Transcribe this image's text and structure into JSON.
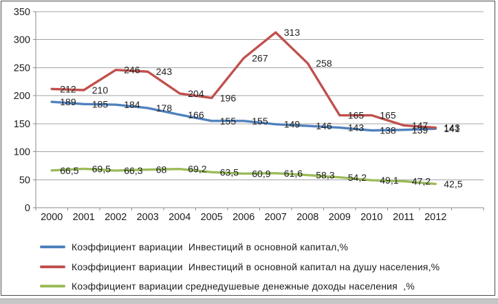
{
  "chart_data": {
    "type": "line",
    "title": "",
    "categories": [
      "2000",
      "2001",
      "2002",
      "2003",
      "2004",
      "2005",
      "2006",
      "2007",
      "2008",
      "2009",
      "2010",
      "2011",
      "2012"
    ],
    "series": [
      {
        "name": "Коэффициент вариации  Инвестиций в основной капитал,%",
        "color": "#4F81BD",
        "values": [
          189,
          185,
          184,
          178,
          166,
          155,
          155,
          149,
          146,
          143,
          138,
          139,
          141
        ]
      },
      {
        "name": "Коэффициент вариации  Инвестиций в основной капитал на душу населения,%",
        "color": "#C0504D",
        "values": [
          212,
          210,
          246,
          243,
          204,
          196,
          267,
          313,
          258,
          165,
          165,
          147,
          143
        ]
      },
      {
        "name": "Коэффициент вариации среднедушевые денежные доходы населения  ,%",
        "color": "#9BBB59",
        "values": [
          66.5,
          69.5,
          66.3,
          68,
          69.2,
          63.5,
          60.9,
          61.6,
          58.3,
          54.2,
          49.1,
          47.2,
          42.5
        ]
      }
    ],
    "ylim": [
      0,
      350
    ],
    "y_ticks": [
      0,
      50,
      100,
      150,
      200,
      250,
      300,
      350
    ],
    "grid": true,
    "data_labels": true,
    "decimal_comma": true,
    "legend_position": "bottom-left",
    "extra_right_slots": 1,
    "grid_color": "#a3a3a3",
    "axis_color": "#8a8a8a",
    "text_color": "#1c1c1c"
  }
}
